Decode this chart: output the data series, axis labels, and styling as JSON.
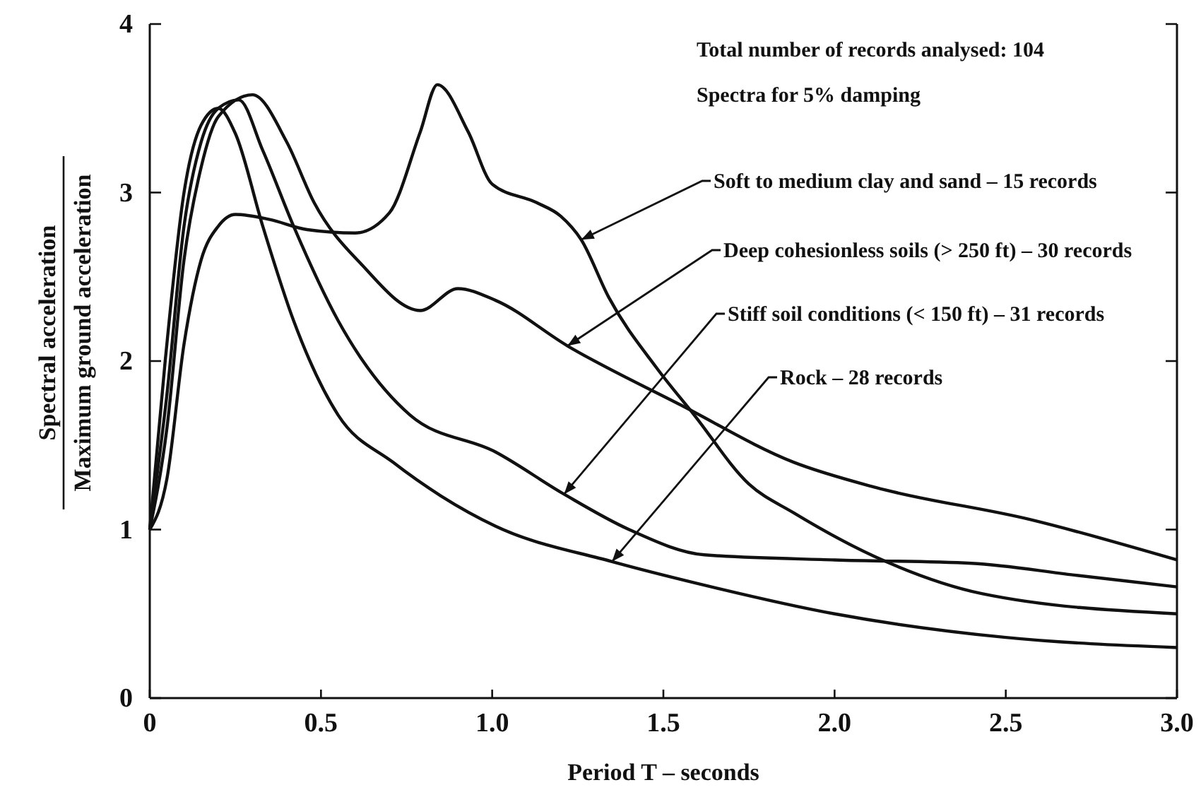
{
  "chart_data": {
    "type": "line",
    "xlabel": "Period T – seconds",
    "ylabel": "Spectral acceleration\nMaximum ground acceleration",
    "annotations": [
      "Total number of records analysed: 104",
      "Spectra for 5% damping",
      {
        "text": "Soft to medium clay and sand – 15 records",
        "x": 1.26,
        "y": 2.72
      },
      {
        "text": "Deep cohesionless soils (> 250 ft) – 30 records",
        "x": 1.22,
        "y": 2.09
      },
      {
        "text": "Stiff soil conditions (< 150 ft) – 31 records",
        "x": 1.21,
        "y": 1.21
      },
      {
        "text": "Rock – 28 records",
        "x": 1.35,
        "y": 0.81
      }
    ],
    "xlim": [
      0,
      3
    ],
    "xticks": [
      0,
      0.5,
      {
        "value": 1,
        "label": "1.0"
      },
      1.5,
      {
        "value": 2,
        "label": "2.0"
      },
      2.5,
      {
        "value": 3,
        "label": "3.0"
      }
    ],
    "ylim": [
      0,
      4
    ],
    "yticks": [
      0,
      1,
      2,
      3,
      4
    ],
    "grid": false,
    "marker": "none",
    "line_style": "solid",
    "series": [
      {
        "color": "#111111",
        "x": [
          0,
          0.05,
          0.1,
          0.15,
          0.2,
          0.25,
          0.35,
          0.46,
          0.6,
          0.7,
          0.79,
          0.84,
          0.93,
          1.0,
          1.13,
          1.2,
          1.26,
          1.34,
          1.48,
          1.59,
          1.75,
          1.88,
          2.15,
          2.43,
          3.0
        ],
        "values": [
          1,
          1.3,
          2.1,
          2.6,
          2.8,
          2.87,
          2.84,
          2.78,
          2.76,
          2.88,
          3.36,
          3.64,
          3.36,
          3.05,
          2.94,
          2.86,
          2.72,
          2.38,
          1.96,
          1.68,
          1.27,
          1.1,
          0.81,
          0.62,
          0.5
        ]
      },
      {
        "color": "#111111",
        "x": [
          0,
          0.05,
          0.1,
          0.15,
          0.2,
          0.3,
          0.4,
          0.48,
          0.62,
          0.79,
          0.9,
          1.01,
          1.22,
          1.55,
          1.88,
          2.12,
          2.57,
          3.0
        ],
        "values": [
          1,
          1.6,
          2.6,
          3.15,
          3.45,
          3.58,
          3.3,
          2.94,
          2.57,
          2.3,
          2.43,
          2.36,
          2.09,
          1.74,
          1.4,
          1.25,
          1.06,
          0.82
        ]
      },
      {
        "color": "#111111",
        "x": [
          0,
          0.05,
          0.1,
          0.15,
          0.2,
          0.26,
          0.33,
          0.42,
          0.55,
          0.76,
          1.01,
          1.21,
          1.4,
          1.62,
          2.0,
          2.4,
          2.7,
          3.0
        ],
        "values": [
          1,
          1.8,
          2.8,
          3.3,
          3.5,
          3.55,
          3.25,
          2.8,
          2.24,
          1.68,
          1.46,
          1.21,
          1.0,
          0.85,
          0.82,
          0.8,
          0.73,
          0.66
        ]
      },
      {
        "color": "#111111",
        "x": [
          0,
          0.045,
          0.1,
          0.15,
          0.2,
          0.25,
          0.33,
          0.42,
          0.55,
          0.71,
          0.85,
          1.01,
          1.35,
          1.6,
          2.0,
          2.5,
          3.0
        ],
        "values": [
          1,
          2.0,
          3.0,
          3.4,
          3.5,
          3.35,
          2.8,
          2.24,
          1.68,
          1.4,
          1.2,
          1.02,
          0.81,
          0.68,
          0.5,
          0.36,
          0.3
        ]
      }
    ]
  }
}
